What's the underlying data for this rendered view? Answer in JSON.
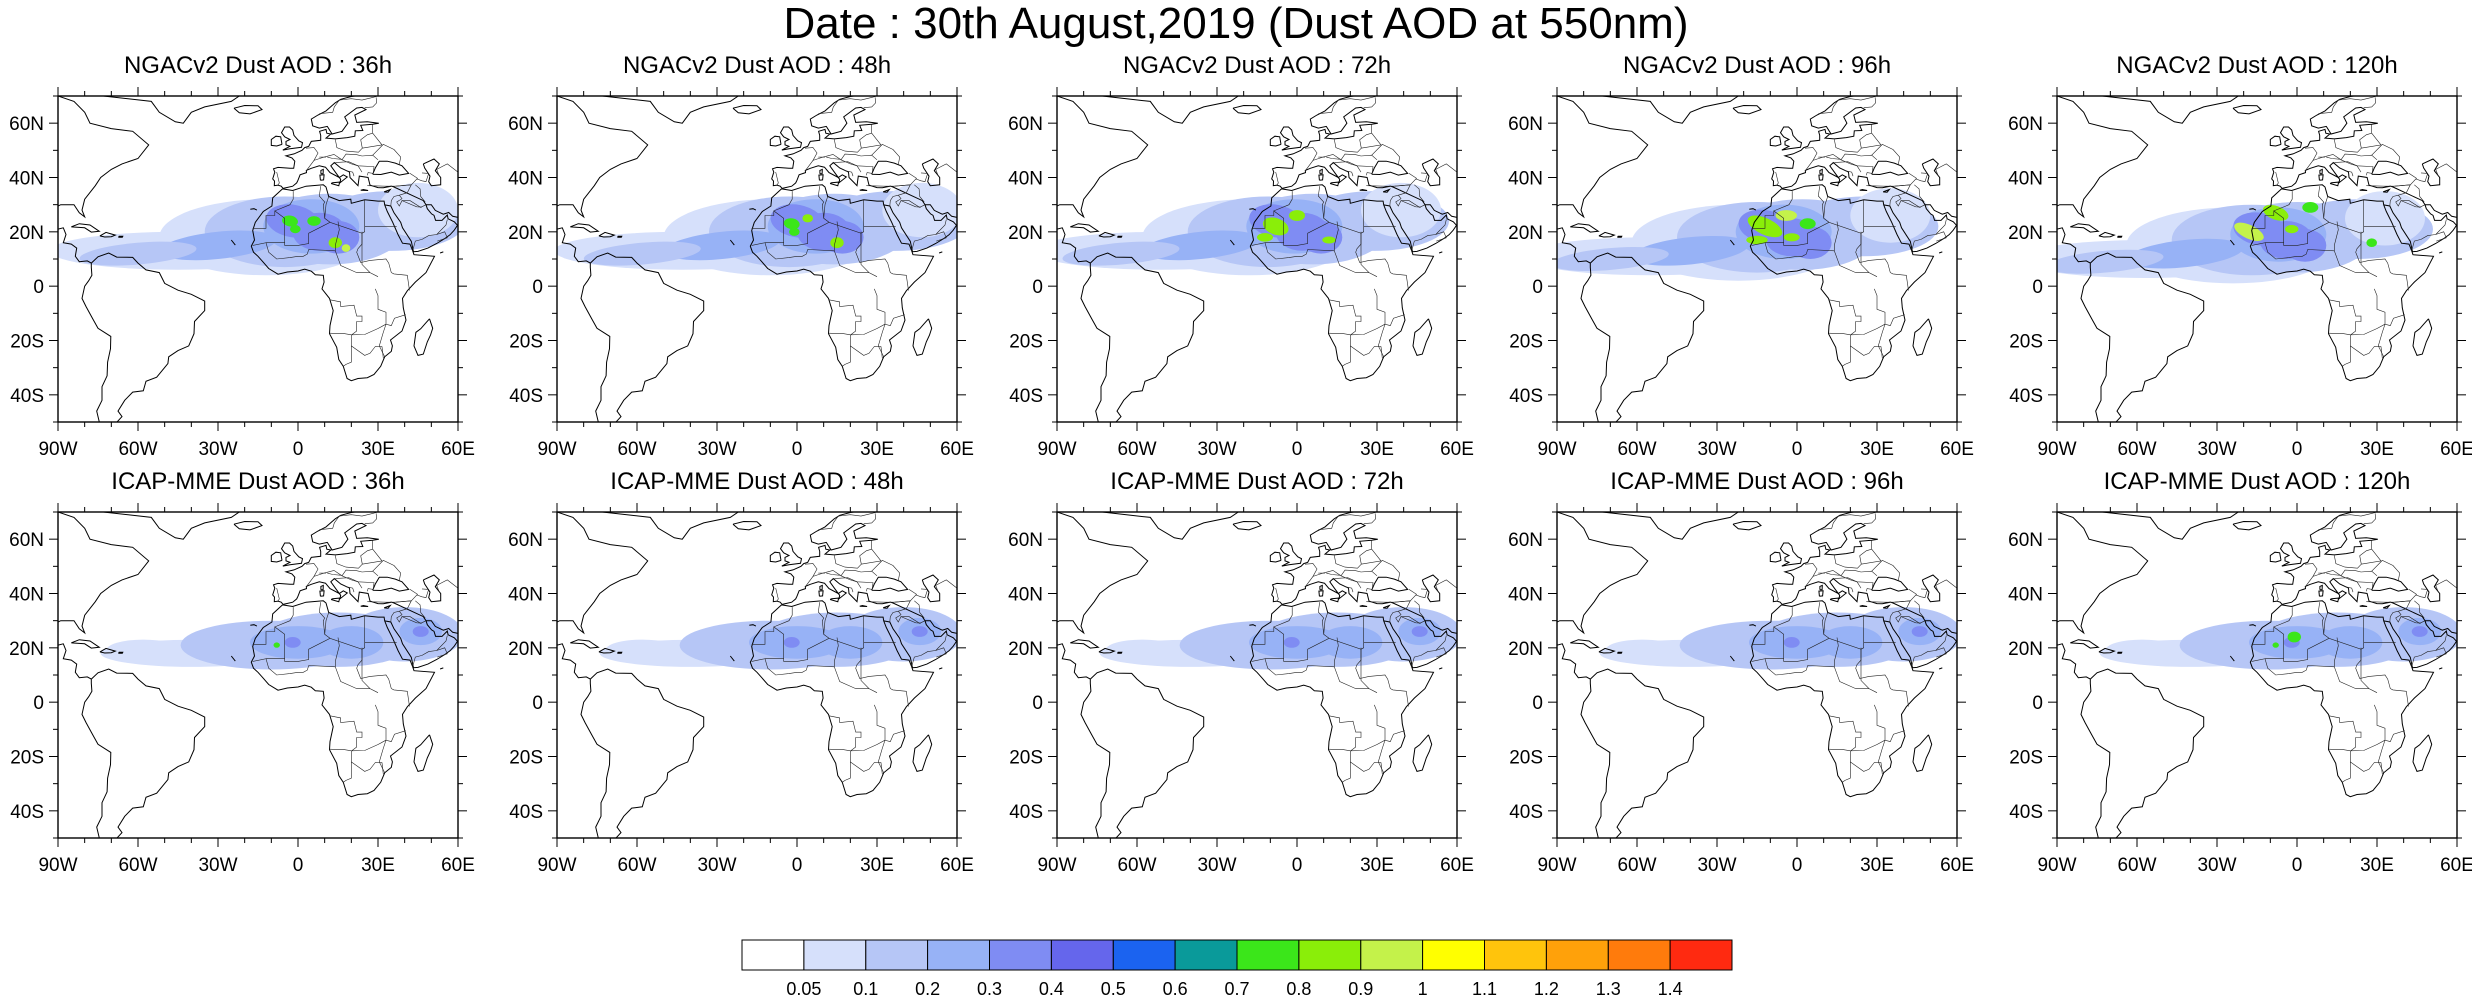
{
  "title": "Date : 30th August,2019 (Dust AOD at 550nm)",
  "panels": [
    {
      "title": "NGACv2 Dust AOD : 36h",
      "model": "ngac"
    },
    {
      "title": "NGACv2 Dust AOD : 48h",
      "model": "ngac"
    },
    {
      "title": "NGACv2 Dust AOD : 72h",
      "model": "ngac"
    },
    {
      "title": "NGACv2 Dust AOD : 96h",
      "model": "ngac"
    },
    {
      "title": "NGACv2 Dust AOD : 120h",
      "model": "ngac"
    },
    {
      "title": "ICAP-MME Dust AOD : 36h",
      "model": "icap"
    },
    {
      "title": "ICAP-MME Dust AOD : 48h",
      "model": "icap"
    },
    {
      "title": "ICAP-MME Dust AOD : 72h",
      "model": "icap"
    },
    {
      "title": "ICAP-MME Dust AOD : 96h",
      "model": "icap"
    },
    {
      "title": "ICAP-MME Dust AOD : 120h",
      "model": "icap"
    }
  ],
  "map": {
    "lon_range": [
      -90,
      60
    ],
    "lat_range": [
      -50,
      70
    ],
    "lon_ticks": [
      {
        "v": -90,
        "label": "90W"
      },
      {
        "v": -60,
        "label": "60W"
      },
      {
        "v": -30,
        "label": "30W"
      },
      {
        "v": 0,
        "label": "0"
      },
      {
        "v": 30,
        "label": "30E"
      },
      {
        "v": 60,
        "label": "60E"
      }
    ],
    "lat_ticks": [
      {
        "v": 60,
        "label": "60N"
      },
      {
        "v": 40,
        "label": "40N"
      },
      {
        "v": 20,
        "label": "20N"
      },
      {
        "v": 0,
        "label": "0"
      },
      {
        "v": -20,
        "label": "20S"
      },
      {
        "v": -40,
        "label": "40S"
      }
    ]
  },
  "colorbar": {
    "labels": [
      "0.05",
      "0.1",
      "0.2",
      "0.3",
      "0.4",
      "0.5",
      "0.6",
      "0.7",
      "0.8",
      "0.9",
      "1",
      "1.1",
      "1.2",
      "1.3",
      "1.4"
    ],
    "colors": [
      "#ffffff",
      "#d6e0fb",
      "#b6c6f6",
      "#97b2f6",
      "#7f8cf3",
      "#6566ec",
      "#1b63f0",
      "#0a9a9a",
      "#3be61a",
      "#8aee09",
      "#c4f24a",
      "#ffff00",
      "#ffc40c",
      "#ffa10a",
      "#ff7b0c",
      "#ff2a10"
    ]
  }
}
